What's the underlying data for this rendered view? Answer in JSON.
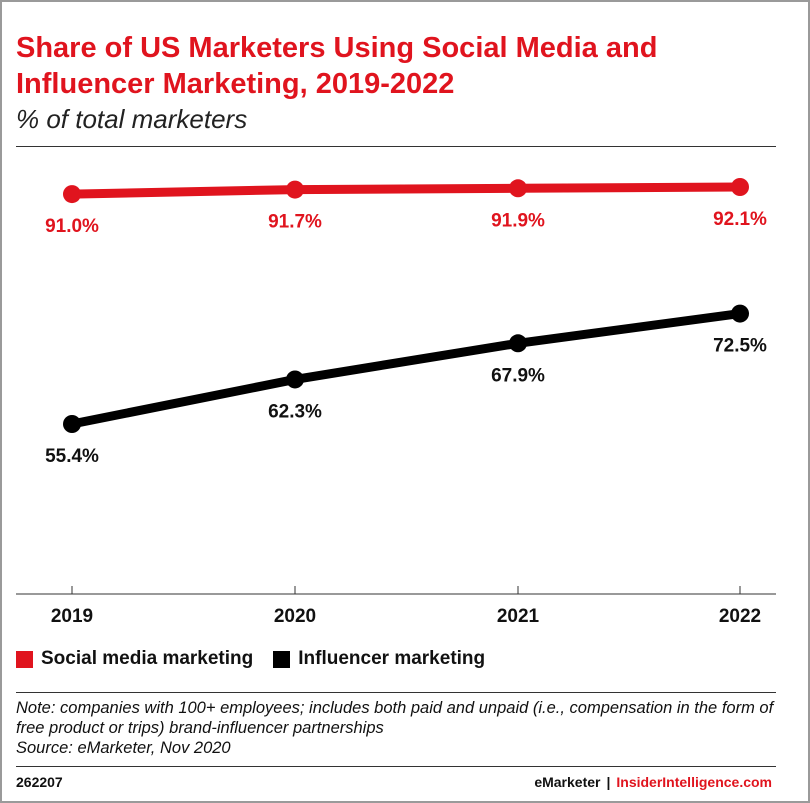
{
  "header": {
    "title": "Share of US Marketers Using Social Media and Influencer Marketing, 2019-2022",
    "subtitle": "% of total marketers"
  },
  "chart_data": {
    "type": "line",
    "categories": [
      "2019",
      "2020",
      "2021",
      "2022"
    ],
    "series": [
      {
        "name": "Social media marketing",
        "values": [
          91.0,
          91.7,
          91.9,
          92.1
        ],
        "labels": [
          "91.0%",
          "91.7%",
          "91.9%",
          "92.1%"
        ],
        "color": "#e0141e"
      },
      {
        "name": "Influencer marketing",
        "values": [
          55.4,
          62.3,
          67.9,
          72.5
        ],
        "labels": [
          "55.4%",
          "62.3%",
          "67.9%",
          "72.5%"
        ],
        "color": "#000000"
      }
    ],
    "ylim": [
      30,
      100
    ],
    "grid": false,
    "legend_position": "bottom-left"
  },
  "footer": {
    "note": "Note: companies with 100+ employees; includes both paid and unpaid (i.e., compensation in the form of free product or trips) brand-influencer partnerships",
    "source": "Source: eMarketer, Nov 2020",
    "chart_id": "262207",
    "brand1": "eMarketer",
    "separator": "|",
    "brand2": "InsiderIntelligence.com"
  }
}
